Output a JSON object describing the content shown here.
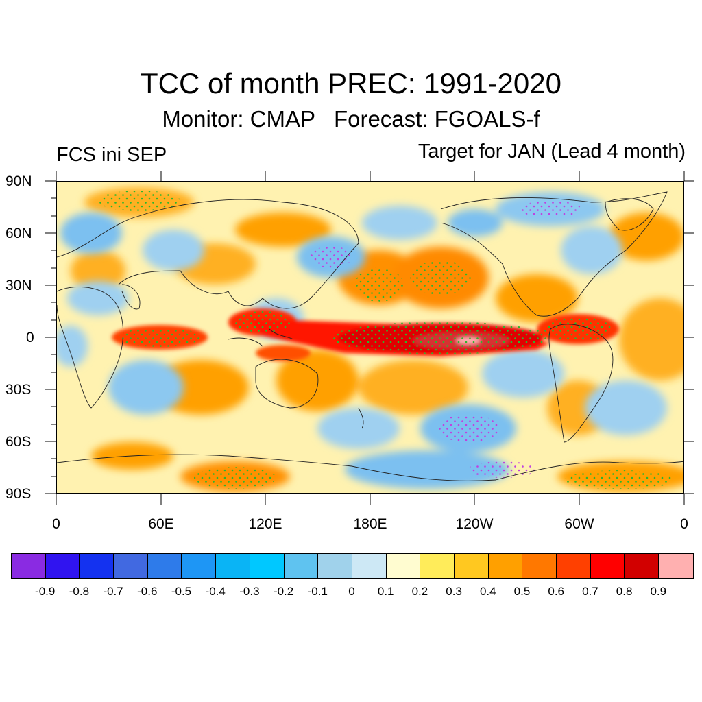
{
  "title": "TCC of month PREC: 1991-2020",
  "subtitle": "Monitor: CMAP   Forecast: FGOALS-f",
  "left_label": "FCS ini SEP",
  "right_label": "Target for JAN (Lead 4 month)",
  "lat_labels": [
    "90N",
    "60N",
    "30N",
    "0",
    "30S",
    "60S",
    "90S"
  ],
  "lon_labels": [
    "0",
    "60E",
    "120E",
    "180E",
    "120W",
    "60W",
    "0"
  ],
  "colorbar": {
    "colors": [
      "#8a2be2",
      "#3014f0",
      "#1432f0",
      "#4169e1",
      "#2e7bea",
      "#1e96f5",
      "#0ab4f5",
      "#00c8ff",
      "#5fc3f0",
      "#a0d2eb",
      "#cde8f5",
      "#fffcd0",
      "#ffec5a",
      "#ffc820",
      "#ffa000",
      "#ff7800",
      "#ff4000",
      "#ff0000",
      "#d20000",
      "#ffb0b0"
    ],
    "labels": [
      "-0.9",
      "-0.8",
      "-0.7",
      "-0.6",
      "-0.5",
      "-0.4",
      "-0.3",
      "-0.2",
      "-0.1",
      "0",
      "0.1",
      "0.2",
      "0.3",
      "0.4",
      "0.5",
      "0.6",
      "0.7",
      "0.8",
      "0.9"
    ]
  }
}
